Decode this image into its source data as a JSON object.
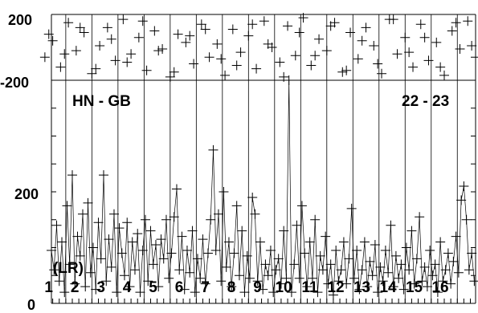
{
  "chart_data": [
    {
      "type": "scatter",
      "panel": "top",
      "ylim": [
        -200,
        200
      ],
      "ytick_labels": [
        "200",
        "-200"
      ],
      "ytick_values": [
        200,
        -200
      ],
      "marker": "plus",
      "series": [
        {
          "x": [
            0.2,
            0.5,
            0.8,
            1.1,
            1.4,
            1.7,
            2.0,
            2.3,
            2.6,
            2.9,
            3.2,
            3.5,
            3.8,
            4.1,
            4.4,
            4.7,
            5.0,
            5.3,
            5.6,
            5.9,
            6.2,
            6.5,
            6.8,
            7.1,
            7.4,
            7.7,
            8.0,
            8.3,
            8.6,
            8.9,
            9.2,
            9.5,
            9.8,
            10.1,
            10.4,
            10.7,
            11.0,
            11.3,
            11.6,
            11.9,
            12.2,
            12.5,
            12.8,
            13.1,
            13.4,
            13.7,
            14.0,
            14.3,
            14.6,
            14.9,
            15.2,
            15.5,
            15.8,
            16.1,
            16.4,
            16.7,
            0.35,
            0.95,
            1.55,
            2.15,
            2.75,
            3.35,
            3.95,
            4.55,
            5.15,
            5.75,
            6.35,
            6.95,
            7.55,
            8.15,
            8.75,
            9.35,
            9.95,
            10.55,
            11.15,
            11.75,
            12.35,
            12.95,
            13.55,
            14.15,
            14.75,
            15.35,
            15.95,
            16.55
          ],
          "y": [
            -60,
            40,
            -120,
            150,
            -20,
            90,
            -160,
            10,
            120,
            -80,
            170,
            -40,
            60,
            -140,
            100,
            -10,
            -180,
            80,
            30,
            -100,
            140,
            -60,
            20,
            -170,
            110,
            -30,
            70,
            -130,
            160,
            0,
            -90,
            130,
            -50,
            180,
            -110,
            50,
            -20,
            150,
            -150,
            90,
            -70,
            120,
            10,
            -160,
            170,
            -40,
            60,
            -120,
            140,
            -80,
            30,
            -170,
            100,
            -10,
            160,
            -60,
            80,
            -40,
            120,
            -130,
            50,
            -90,
            160,
            -20,
            -150,
            70,
            110,
            -70,
            -110,
            140,
            20,
            -180,
            90,
            -50,
            130,
            -140,
            40,
            -100,
            170,
            -30,
            60,
            -120,
            150,
            10
          ]
        }
      ]
    },
    {
      "type": "line",
      "panel": "bottom",
      "title": "HN - GB",
      "annotation": "22 - 23",
      "ylim": [
        0,
        400
      ],
      "ytick_labels": [
        "200",
        "0"
      ],
      "ytick_values": [
        200,
        0
      ],
      "xlim": [
        0.45,
        16.7
      ],
      "x_group_labels": [
        "(LR)",
        "1",
        "2",
        "3",
        "4",
        "5",
        "6",
        "7",
        "8",
        "9",
        "10",
        "11",
        "12",
        "13",
        "14",
        "15",
        "16"
      ],
      "x_group_positions": [
        0.45,
        0.5,
        1.5,
        2.5,
        3.5,
        4.5,
        5.5,
        6.5,
        7.5,
        8.5,
        9.5,
        10.5,
        11.5,
        12.5,
        13.5,
        14.5,
        15.5
      ],
      "vertical_grid_x": [
        1.0,
        2.0,
        3.0,
        4.0,
        5.0,
        6.0,
        7.0,
        8.0,
        9.0,
        10.0,
        11.0,
        12.0,
        13.0,
        14.0,
        15.0,
        16.0
      ],
      "marker": "plus",
      "series": [
        {
          "x": [
            0.45,
            0.55,
            0.65,
            0.75,
            0.85,
            0.95,
            1.05,
            1.15,
            1.25,
            1.35,
            1.45,
            1.55,
            1.65,
            1.75,
            1.85,
            1.95,
            2.05,
            2.15,
            2.25,
            2.35,
            2.45,
            2.55,
            2.65,
            2.75,
            2.85,
            2.95,
            3.05,
            3.15,
            3.25,
            3.35,
            3.45,
            3.55,
            3.65,
            3.75,
            3.85,
            3.95,
            4.05,
            4.15,
            4.25,
            4.35,
            4.45,
            4.55,
            4.65,
            4.75,
            4.85,
            4.95,
            5.05,
            5.15,
            5.25,
            5.35,
            5.45,
            5.55,
            5.65,
            5.75,
            5.85,
            5.95,
            6.05,
            6.15,
            6.25,
            6.35,
            6.45,
            6.55,
            6.65,
            6.75,
            6.85,
            6.95,
            7.05,
            7.15,
            7.25,
            7.35,
            7.45,
            7.55,
            7.65,
            7.75,
            7.85,
            7.95,
            8.05,
            8.15,
            8.25,
            8.35,
            8.45,
            8.55,
            8.65,
            8.75,
            8.85,
            8.95,
            9.05,
            9.15,
            9.25,
            9.35,
            9.45,
            9.55,
            9.65,
            9.75,
            9.85,
            9.95,
            10.05,
            10.15,
            10.25,
            10.35,
            10.45,
            10.55,
            10.65,
            10.75,
            10.85,
            10.95,
            11.05,
            11.15,
            11.25,
            11.35,
            11.45,
            11.55,
            11.65,
            11.75,
            11.85,
            11.95,
            12.05,
            12.15,
            12.25,
            12.35,
            12.45,
            12.55,
            12.65,
            12.75,
            12.85,
            12.95,
            13.05,
            13.15,
            13.25,
            13.35,
            13.45,
            13.55,
            13.65,
            13.75,
            13.85,
            13.95,
            14.05,
            14.15,
            14.25,
            14.35,
            14.45,
            14.55,
            14.65,
            14.75,
            14.85,
            14.95,
            15.05,
            15.15,
            15.25,
            15.35,
            15.45,
            15.55,
            15.65,
            15.75,
            15.85,
            15.95,
            16.05,
            16.15,
            16.25,
            16.35,
            16.45,
            16.55,
            16.65
          ],
          "y": [
            95,
            60,
            140,
            40,
            110,
            20,
            175,
            70,
            230,
            35,
            120,
            85,
            160,
            30,
            180,
            55,
            100,
            25,
            145,
            80,
            230,
            40,
            115,
            65,
            160,
            20,
            135,
            90,
            50,
            145,
            30,
            110,
            60,
            125,
            20,
            95,
            150,
            40,
            130,
            70,
            105,
            30,
            115,
            80,
            150,
            45,
            90,
            155,
            205,
            60,
            120,
            25,
            95,
            55,
            130,
            20,
            80,
            45,
            115,
            35,
            90,
            150,
            275,
            95,
            160,
            40,
            200,
            65,
            110,
            30,
            90,
            175,
            50,
            130,
            20,
            85,
            45,
            190,
            160,
            40,
            110,
            25,
            70,
            50,
            95,
            20,
            60,
            80,
            35,
            130,
            45,
            400,
            20,
            70,
            140,
            45,
            175,
            90,
            30,
            110,
            45,
            150,
            20,
            85,
            60,
            120,
            35,
            70,
            15,
            95,
            40,
            60,
            110,
            35,
            80,
            170,
            45,
            95,
            25,
            60,
            110,
            30,
            75,
            50,
            105,
            20,
            65,
            40,
            95,
            55,
            140,
            30,
            85,
            45,
            70,
            25,
            100,
            60,
            130,
            35,
            80,
            155,
            40,
            65,
            30,
            95,
            50,
            70,
            20,
            110,
            40,
            60,
            90,
            35,
            75,
            120,
            55,
            185,
            210,
            150,
            60,
            90,
            40
          ]
        }
      ]
    }
  ]
}
